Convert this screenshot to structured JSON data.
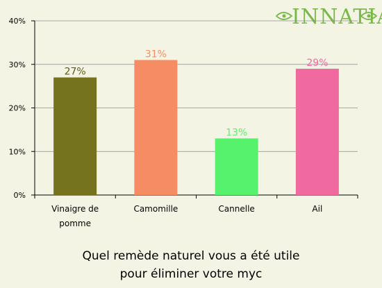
{
  "logo": {
    "text": "INNATIA"
  },
  "chart_data": {
    "type": "bar",
    "categories": [
      [
        "Vinaigre de",
        "pomme"
      ],
      [
        "Camomille"
      ],
      [
        "Cannelle"
      ],
      [
        "Ail"
      ]
    ],
    "values": [
      27,
      31,
      13,
      29
    ],
    "value_labels": [
      "27%",
      "31%",
      "13%",
      "29%"
    ],
    "colors": [
      "#76731f",
      "#f58c63",
      "#56f26b",
      "#f06aa0"
    ],
    "ylim": [
      0,
      40
    ],
    "yticks": [
      0,
      10,
      20,
      30,
      40
    ],
    "ytick_labels": [
      "0%",
      "10%",
      "20%",
      "30%",
      "40%"
    ],
    "title": [
      "Quel remède naturel vous a été utile",
      "pour éliminer votre myc"
    ],
    "grid": true,
    "colors_text": {
      "0": "#6b6820"
    }
  }
}
